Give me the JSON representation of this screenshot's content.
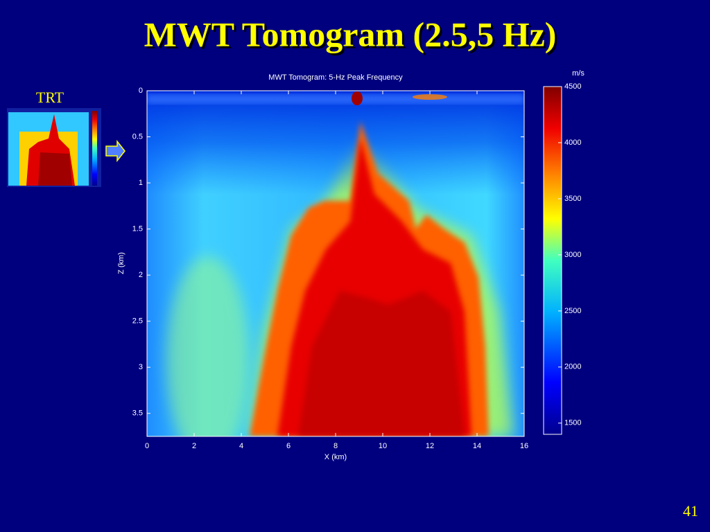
{
  "slide": {
    "title": "MWT Tomogram (2.5,5 Hz)",
    "inset_label": "TRT",
    "number": "41"
  },
  "chart_data": {
    "type": "heatmap",
    "title": "MWT Tomogram: 5-Hz Peak Frequency",
    "xlabel": "X (km)",
    "ylabel": "Z (km)",
    "xlim": [
      0,
      16
    ],
    "xticks": [
      0,
      2,
      4,
      6,
      8,
      10,
      12,
      14,
      16
    ],
    "ylim": [
      3.75,
      0
    ],
    "yticks": [
      0,
      0.5,
      1,
      1.5,
      2,
      2.5,
      3,
      3.5
    ],
    "colorbar": {
      "label": "m/s",
      "lim": [
        1400,
        4500
      ],
      "ticks": [
        1500,
        2000,
        2500,
        3000,
        3500,
        4000,
        4500
      ]
    }
  }
}
